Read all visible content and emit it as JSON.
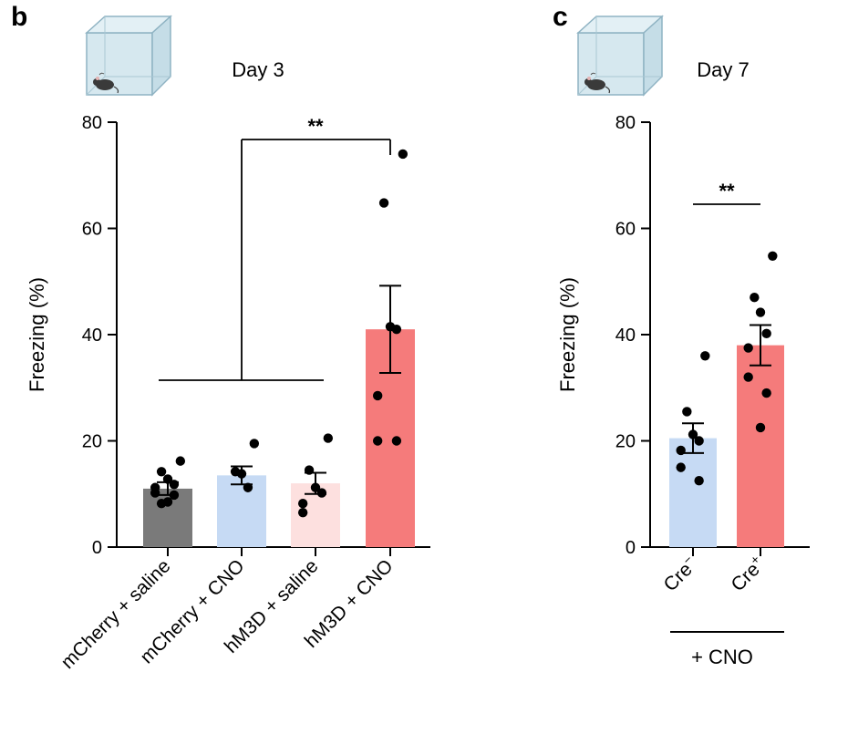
{
  "chart_data": [
    {
      "panel": "b",
      "type": "bar",
      "title": "Day 3",
      "ylabel": "Freezing (%)",
      "ylim": [
        0,
        80
      ],
      "yticks": [
        "0",
        "20",
        "40",
        "60",
        "80"
      ],
      "categories": [
        "mCherry + saline",
        "mCherry + CNO",
        "hM3D + saline",
        "hM3D + CNO"
      ],
      "means": [
        11.0,
        13.5,
        12.0,
        41.0
      ],
      "sem": [
        1.2,
        1.7,
        2.0,
        8.2
      ],
      "colors": [
        "#7a7a7a",
        "#c6daf4",
        "#fde0df",
        "#f57b7b"
      ],
      "points": [
        [
          16.2,
          14.2,
          12.8,
          11.8,
          11.2,
          10.2,
          9.8,
          8.5,
          8.2
        ],
        [
          19.5,
          14.2,
          13.8,
          11.2
        ],
        [
          20.5,
          14.5,
          11.2,
          10.2,
          8.2,
          6.5
        ],
        [
          74.0,
          64.8,
          41.5,
          41.0,
          28.5,
          20.0,
          20.0
        ]
      ],
      "significance": {
        "label": "**",
        "from": "mCherry + saline / mCherry + CNO / hM3D + saline",
        "to": "hM3D + CNO"
      }
    },
    {
      "panel": "c",
      "type": "bar",
      "title": "Day 7",
      "ylabel": "Freezing (%)",
      "ylim": [
        0,
        80
      ],
      "yticks": [
        "0",
        "20",
        "40",
        "60",
        "80"
      ],
      "categories": [
        "Cre",
        "Cre"
      ],
      "category_superscripts": [
        "−",
        "+"
      ],
      "group_label": "+ CNO",
      "means": [
        20.5,
        38.0
      ],
      "sem": [
        2.8,
        3.8
      ],
      "colors": [
        "#c6daf4",
        "#f57b7b"
      ],
      "points": [
        [
          36.0,
          25.5,
          21.2,
          20.0,
          18.2,
          15.0,
          12.5
        ],
        [
          54.8,
          47.0,
          44.2,
          40.2,
          37.5,
          32.0,
          29.0,
          22.5
        ]
      ],
      "significance": {
        "label": "**",
        "from": "Cre−",
        "to": "Cre+"
      }
    }
  ]
}
